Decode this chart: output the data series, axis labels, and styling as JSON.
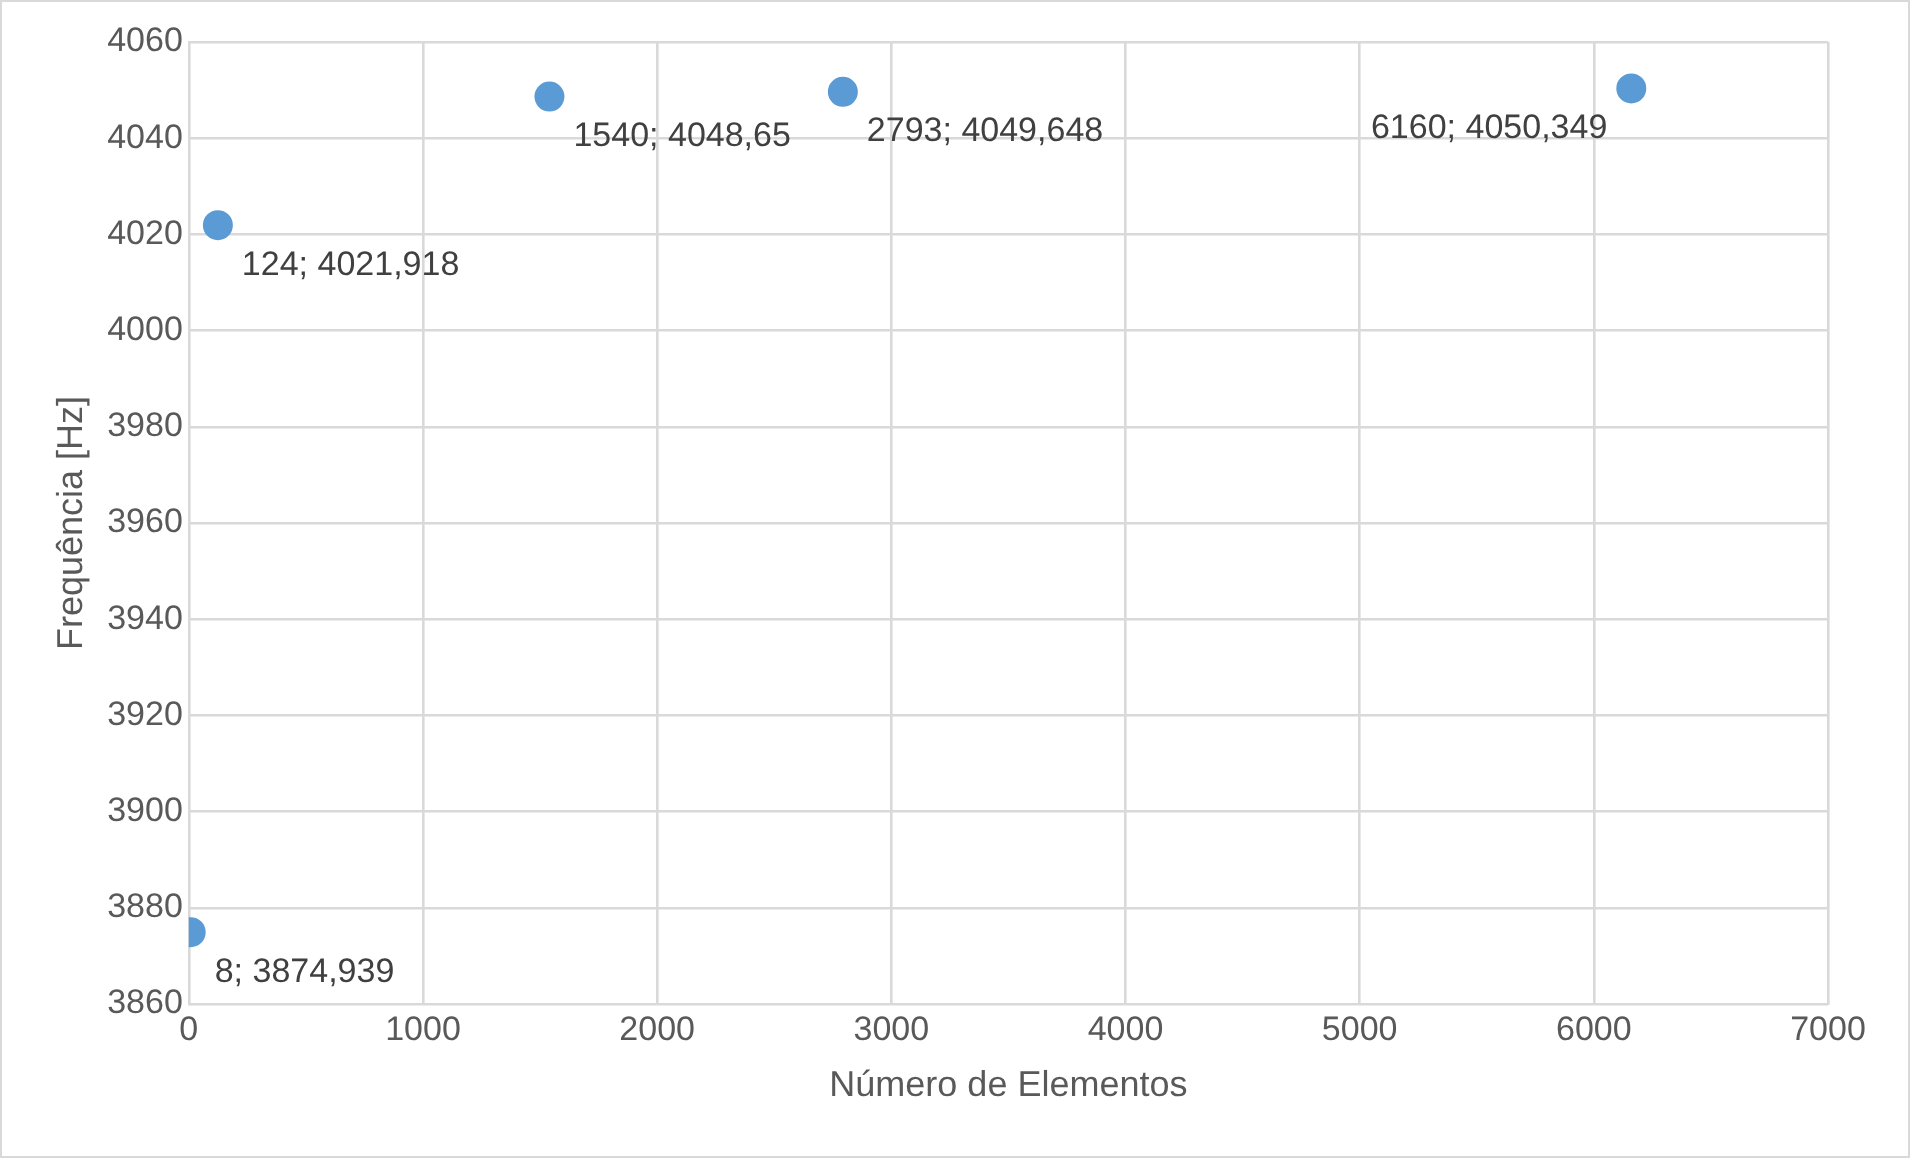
{
  "chart_data": {
    "type": "scatter",
    "xlabel": "Número de Elementos",
    "ylabel": "Frequência [Hz]",
    "x": [
      8,
      124,
      1540,
      2793,
      6160
    ],
    "series": [
      {
        "color": "#5b9bd5",
        "values": [
          3874.939,
          4021.918,
          4048.65,
          4049.648,
          4050.349
        ],
        "value_labels": [
          "8; 3874,939",
          "124; 4021,918",
          "1540; 4048,65",
          "2793; 4049,648",
          "6160; 4050,349"
        ]
      }
    ],
    "xlim": [
      0,
      7000
    ],
    "xticks": [
      0,
      1000,
      2000,
      3000,
      4000,
      5000,
      6000,
      7000
    ],
    "ylim": [
      3860,
      4060
    ],
    "yticks": [
      3860,
      3880,
      3900,
      3920,
      3940,
      3960,
      3980,
      4000,
      4020,
      4040,
      4060
    ],
    "grid": true,
    "legend": false,
    "marker": "circle"
  }
}
